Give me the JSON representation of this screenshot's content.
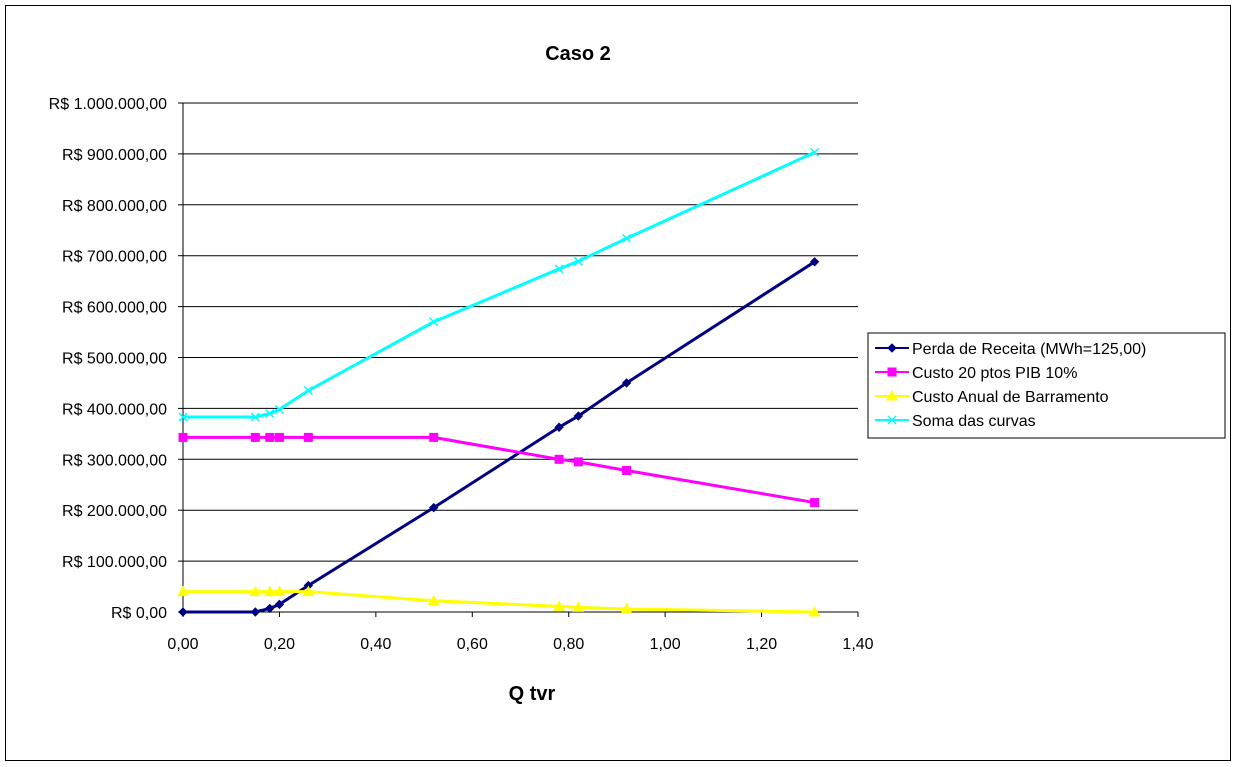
{
  "chart_data": {
    "type": "line",
    "title": "Caso 2",
    "xlabel": "Q tvr",
    "ylabel": "",
    "xlim": [
      0,
      1.4
    ],
    "ylim": [
      0,
      1000000
    ],
    "x_ticks": [
      "0,00",
      "0,20",
      "0,40",
      "0,60",
      "0,80",
      "1,00",
      "1,20",
      "1,40"
    ],
    "y_ticks": [
      "R$ 0,00",
      "R$ 100.000,00",
      "R$ 200.000,00",
      "R$ 300.000,00",
      "R$ 400.000,00",
      "R$ 500.000,00",
      "R$ 600.000,00",
      "R$ 700.000,00",
      "R$ 800.000,00",
      "R$ 900.000,00",
      "R$ 1.000.000,00"
    ],
    "grid": "horizontal",
    "legend_position": "right",
    "series": [
      {
        "name": "Perda de Receita (MWh=125,00)",
        "color": "#000080",
        "marker": "diamond",
        "x": [
          0,
          0.15,
          0.18,
          0.2,
          0.26,
          0.52,
          0.78,
          0.82,
          0.92,
          1.31
        ],
        "y": [
          0,
          0,
          7000,
          15000,
          52000,
          205000,
          363000,
          385000,
          450000,
          688000
        ]
      },
      {
        "name": "Custo 20 ptos PIB 10%",
        "color": "#FF00FF",
        "marker": "square",
        "x": [
          0,
          0.15,
          0.18,
          0.2,
          0.26,
          0.52,
          0.78,
          0.82,
          0.92,
          1.31
        ],
        "y": [
          343000,
          343000,
          343000,
          343000,
          343000,
          343000,
          300000,
          295000,
          278000,
          215000
        ]
      },
      {
        "name": "Custo Anual de Barramento",
        "color": "#FFFF00",
        "marker": "triangle",
        "x": [
          0,
          0.15,
          0.18,
          0.2,
          0.26,
          0.52,
          0.78,
          0.82,
          0.92,
          1.31
        ],
        "y": [
          40000,
          40000,
          40000,
          40000,
          40000,
          22000,
          11000,
          9000,
          6000,
          0
        ]
      },
      {
        "name": "Soma das curvas",
        "color": "#00FFFF",
        "marker": "x",
        "x": [
          0,
          0.15,
          0.18,
          0.2,
          0.26,
          0.52,
          0.78,
          0.82,
          0.92,
          1.31
        ],
        "y": [
          383000,
          383000,
          390000,
          398000,
          435000,
          570000,
          674000,
          689000,
          734000,
          903000
        ]
      }
    ]
  }
}
